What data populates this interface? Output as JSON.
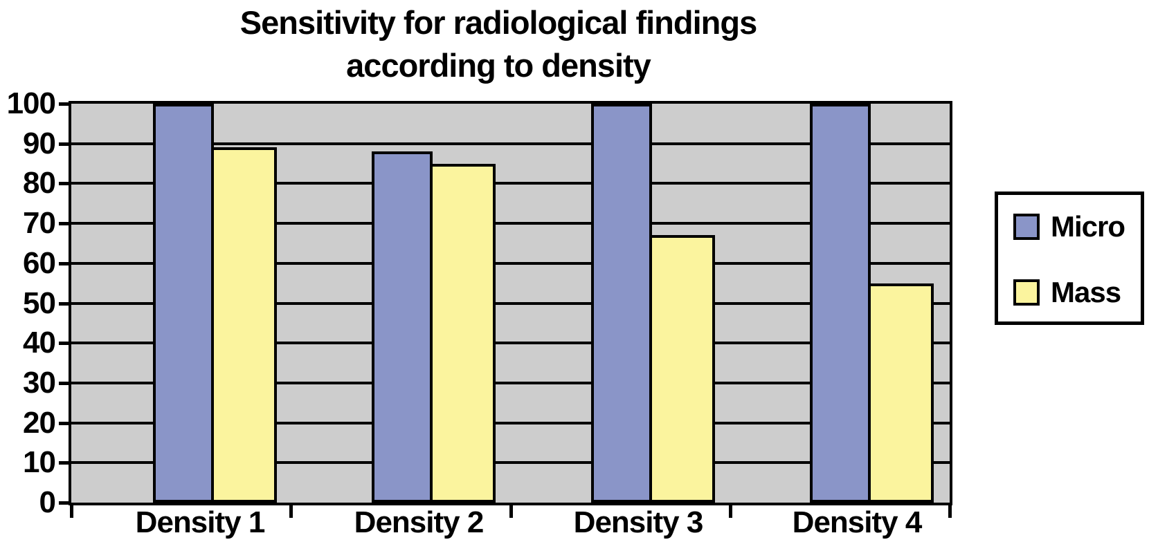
{
  "title": {
    "line1": "Sensitivity for radiological findings",
    "line2": "according to density"
  },
  "chart_data": {
    "type": "bar",
    "title": "Sensitivity for radiological findings according to density",
    "categories": [
      "Density 1",
      "Density 2",
      "Density 3",
      "Density 4"
    ],
    "series": [
      {
        "name": "Micro",
        "color": "#8A95C8",
        "values": [
          100,
          88,
          100,
          100
        ]
      },
      {
        "name": "Mass",
        "color": "#FBF49E",
        "values": [
          89,
          85,
          67,
          55
        ]
      }
    ],
    "xlabel": "",
    "ylabel": "",
    "ylim": [
      0,
      100
    ],
    "ytick_step": 10,
    "yticks": [
      "100",
      "90",
      "80",
      "70",
      "60",
      "50",
      "40",
      "30",
      "20",
      "10",
      "0"
    ],
    "grid": true,
    "plot_background": "#CDCDCD",
    "gridline_color": "#000000",
    "bar_border_color": "#000000",
    "legend_position": "right"
  },
  "legend": {
    "entries": [
      "Micro",
      "Mass"
    ]
  }
}
